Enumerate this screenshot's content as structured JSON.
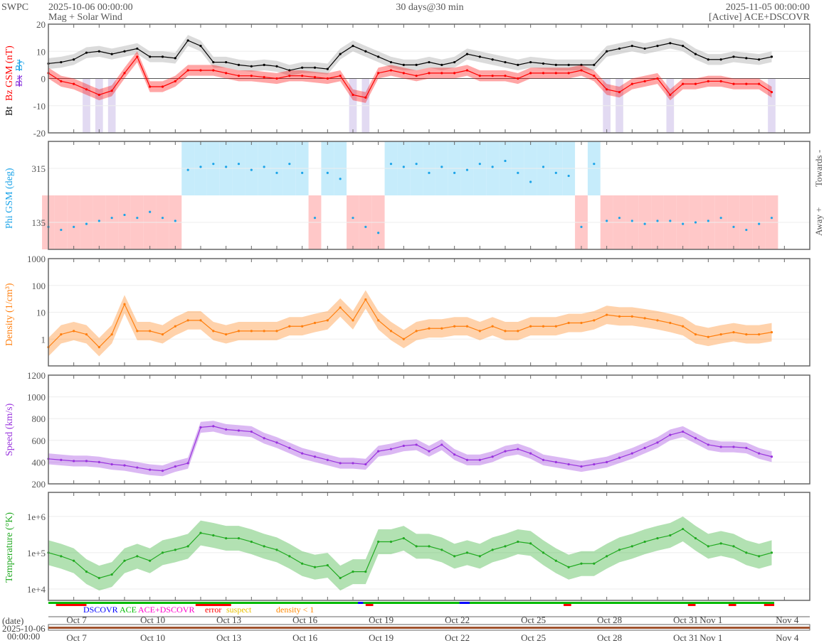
{
  "header": {
    "org": "SWPC",
    "start": "2025-10-06 00:00:00",
    "subtitle": "Mag + Solar Wind",
    "span": "30 days@30 min",
    "end": "2025-11-05 00:00:00",
    "source": "[Active] ACE+DSCOVR"
  },
  "axis_labels": {
    "bt": "Bt",
    "bz": "Bz GSM (nT)",
    "bx": "Bx",
    "by": "By",
    "phi": "Phi GSM (deg)",
    "towards": "Towards -",
    "away": "Away +",
    "density": "Density (1/cm³)",
    "speed": "Speed (km/s)",
    "temperature": "Temperature (°K)"
  },
  "legend": {
    "dscovr": "DSCOVR",
    "ace": "ACE",
    "ace_dscovr": "ACE+DSCOVR",
    "error": "error",
    "suspect": "suspect",
    "density_lt1": "density < 1"
  },
  "date_box": {
    "label": "(date)",
    "date": "2025-10-06",
    "time": "00:00:00"
  },
  "x_tick_labels": [
    "Oct 7",
    "Oct 10",
    "Oct 13",
    "Oct 16",
    "Oct 19",
    "Oct 22",
    "Oct 25",
    "Oct 28",
    "Oct 31",
    "Nov 1",
    "Nov 4"
  ],
  "colors": {
    "bt": "#000000",
    "bz": "#ff0000",
    "bx": "#8833dd",
    "by": "#1aa3e8",
    "phi": "#1aa3e8",
    "towards": "#c6ecfb",
    "away": "#ffc8c8",
    "density": "#ff7f0e",
    "speed": "#9933dd",
    "temperature": "#22aa22",
    "dscovr": "#0000ff",
    "ace": "#00bb00",
    "ace_dscovr": "#ff00cc",
    "error": "#ff0000",
    "suspect": "#e8c000",
    "density_lt1": "#ff8800"
  },
  "chart_data": {
    "type": "line",
    "x_range": [
      "2025-10-06 00:00",
      "2025-11-05 00:00"
    ],
    "x": [
      "2025-10-06 00:00",
      "2025-10-06 12:00",
      "2025-10-07 00:00",
      "2025-10-07 12:00",
      "2025-10-08 00:00",
      "2025-10-08 12:00",
      "2025-10-09 00:00",
      "2025-10-09 12:00",
      "2025-10-10 00:00",
      "2025-10-10 12:00",
      "2025-10-11 00:00",
      "2025-10-11 12:00",
      "2025-10-12 00:00",
      "2025-10-12 12:00",
      "2025-10-13 00:00",
      "2025-10-13 12:00",
      "2025-10-14 00:00",
      "2025-10-14 12:00",
      "2025-10-15 00:00",
      "2025-10-15 12:00",
      "2025-10-16 00:00",
      "2025-10-16 12:00",
      "2025-10-17 00:00",
      "2025-10-17 12:00",
      "2025-10-18 00:00",
      "2025-10-18 12:00",
      "2025-10-19 00:00",
      "2025-10-19 12:00",
      "2025-10-20 00:00",
      "2025-10-20 12:00",
      "2025-10-21 00:00",
      "2025-10-21 12:00",
      "2025-10-22 00:00",
      "2025-10-22 12:00",
      "2025-10-23 00:00",
      "2025-10-23 12:00",
      "2025-10-24 00:00",
      "2025-10-24 12:00",
      "2025-10-25 00:00",
      "2025-10-25 12:00",
      "2025-10-26 00:00",
      "2025-10-26 12:00",
      "2025-10-27 00:00",
      "2025-10-27 12:00",
      "2025-10-28 00:00",
      "2025-10-28 12:00",
      "2025-10-29 00:00",
      "2025-10-29 12:00",
      "2025-10-30 00:00",
      "2025-10-30 12:00",
      "2025-10-31 00:00",
      "2025-10-31 12:00",
      "2025-11-01 00:00",
      "2025-11-01 12:00",
      "2025-11-02 00:00",
      "2025-11-02 12:00",
      "2025-11-03 00:00",
      "2025-11-03 12:00"
    ],
    "panels": [
      {
        "id": "mag",
        "scale": "linear",
        "ylim": [
          -20,
          20
        ],
        "yticks": [
          20,
          10,
          0,
          -10,
          -20
        ],
        "series": [
          {
            "name": "Bt",
            "values": [
              5.5,
              6,
              7,
              9.5,
              10,
              9,
              10,
              11,
              8,
              8,
              7.5,
              14,
              12,
              6,
              6,
              5,
              4.5,
              5,
              4.5,
              3,
              4,
              4,
              3.5,
              9,
              12,
              10,
              8,
              6,
              5,
              5,
              6,
              5,
              6,
              9,
              8,
              7,
              6,
              5,
              6,
              5.5,
              5,
              5,
              5,
              5,
              10,
              11,
              12,
              11,
              12,
              13,
              12,
              9,
              7,
              7,
              8,
              7.5,
              7,
              8
            ]
          },
          {
            "name": "Bz GSM",
            "values": [
              2,
              -1,
              -2,
              -4,
              -6,
              -4.5,
              2,
              8,
              -3,
              -3,
              -1,
              3,
              3,
              3,
              2,
              1,
              1,
              0.5,
              0,
              1,
              1,
              0.5,
              0,
              1,
              -6,
              -7,
              2,
              3,
              2,
              1,
              2,
              2,
              2,
              3,
              1,
              1,
              1,
              0,
              2,
              2,
              2,
              2,
              3,
              1,
              -4,
              -5,
              -2,
              -1,
              0,
              -6,
              -2,
              -2,
              -1,
              -1,
              -2,
              -2,
              -2,
              -5
            ]
          }
        ]
      },
      {
        "id": "phi",
        "scale": "linear",
        "ylim": [
          45,
          405
        ],
        "yticks": [
          135,
          315
        ],
        "series": [
          {
            "name": "Phi GSM",
            "values": [
              120,
              110,
              120,
              130,
              140,
              150,
              160,
              150,
              170,
              150,
              140,
              310,
              320,
              330,
              320,
              330,
              310,
              320,
              300,
              330,
              300,
              150,
              300,
              280,
              150,
              120,
              100,
              330,
              320,
              330,
              300,
              320,
              300,
              310,
              330,
              320,
              340,
              300,
              270,
              320,
              300,
              290,
              120,
              330,
              140,
              150,
              140,
              130,
              140,
              140,
              130,
              135,
              140,
              150,
              120,
              110,
              130,
              150
            ]
          }
        ]
      },
      {
        "id": "density",
        "scale": "log",
        "ylim": [
          0.1,
          1000
        ],
        "yticks": [
          1,
          10,
          100,
          1000
        ],
        "series": [
          {
            "name": "Density",
            "values": [
              0.5,
              1.5,
              2,
              1.5,
              0.5,
              1.5,
              20,
              2,
              2,
              1.5,
              3,
              5,
              5,
              2,
              1.5,
              2,
              2,
              2,
              2,
              3,
              3,
              4,
              5,
              15,
              5,
              30,
              5,
              2,
              1,
              2,
              2.5,
              2.5,
              3,
              3,
              2,
              3,
              2,
              2,
              3,
              3,
              3,
              4,
              4,
              5,
              8,
              7,
              7,
              6,
              5,
              4,
              3,
              1.5,
              1.2,
              1.5,
              1.8,
              1.5,
              1.5,
              1.8
            ]
          }
        ]
      },
      {
        "id": "speed",
        "scale": "linear",
        "ylim": [
          200,
          1200
        ],
        "yticks": [
          200,
          400,
          600,
          800,
          1000,
          1200
        ],
        "series": [
          {
            "name": "Speed",
            "values": [
              430,
              420,
              410,
              410,
              400,
              380,
              370,
              350,
              330,
              320,
              360,
              390,
              720,
              730,
              700,
              690,
              680,
              620,
              580,
              530,
              480,
              450,
              420,
              390,
              390,
              380,
              500,
              520,
              550,
              560,
              500,
              560,
              470,
              420,
              420,
              450,
              500,
              520,
              480,
              420,
              400,
              380,
              360,
              380,
              400,
              440,
              480,
              530,
              580,
              650,
              680,
              620,
              560,
              540,
              540,
              530,
              480,
              450
            ]
          }
        ]
      },
      {
        "id": "temperature",
        "scale": "log",
        "ylim": [
          4850,
          4600000
        ],
        "yticks": [
          10000,
          100000,
          1000000
        ],
        "ytick_labels": [
          "1e+4",
          "1e+5",
          "1e+6"
        ],
        "series": [
          {
            "name": "Temperature",
            "values": [
              100000,
              80000,
              60000,
              30000,
              20000,
              25000,
              60000,
              80000,
              60000,
              100000,
              120000,
              150000,
              350000,
              300000,
              250000,
              250000,
              200000,
              150000,
              120000,
              80000,
              50000,
              40000,
              45000,
              20000,
              30000,
              30000,
              200000,
              200000,
              250000,
              150000,
              150000,
              120000,
              80000,
              100000,
              80000,
              120000,
              150000,
              200000,
              180000,
              100000,
              60000,
              40000,
              50000,
              50000,
              80000,
              120000,
              150000,
              200000,
              250000,
              300000,
              450000,
              250000,
              150000,
              180000,
              150000,
              100000,
              80000,
              100000
            ]
          }
        ]
      }
    ],
    "grid": true
  }
}
